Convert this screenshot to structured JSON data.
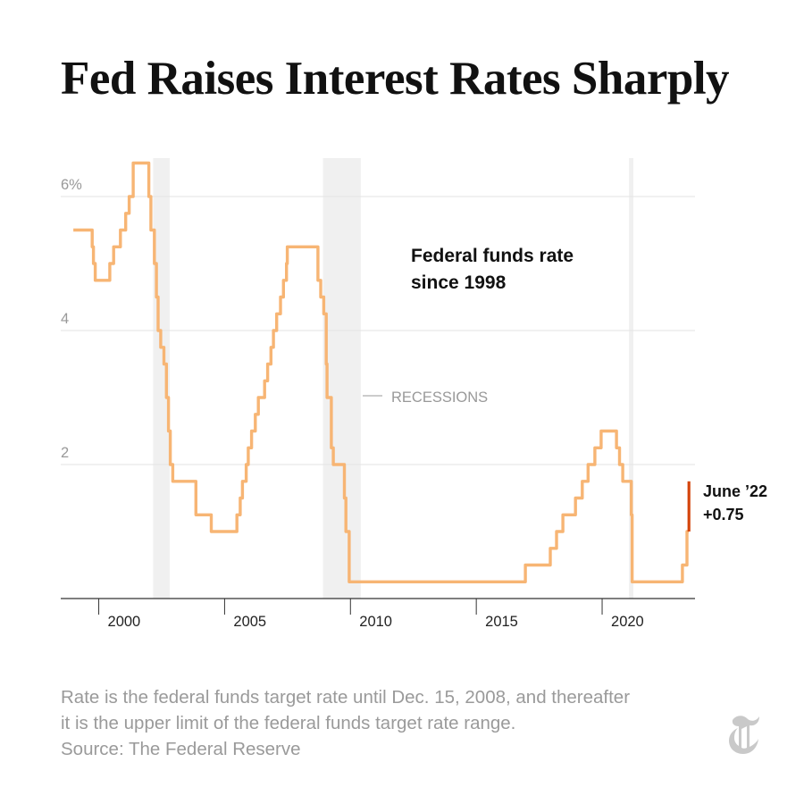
{
  "title": "Fed Raises Interest Rates Sharply",
  "colors": {
    "series": "#f7b574",
    "highlight": "#d4450c",
    "recession": "#f0f0f0",
    "grid": "#e3e3e3",
    "axis": "#333333",
    "muted": "#999999"
  },
  "chart_data": {
    "type": "line",
    "step": true,
    "subtitle_lines": [
      "Federal funds rate",
      "since 1998"
    ],
    "xlim": [
      1997.5,
      2022.7
    ],
    "ylim": [
      0,
      6.6
    ],
    "y_ticks": [
      {
        "value": 6,
        "label": "6%"
      },
      {
        "value": 4,
        "label": "4"
      },
      {
        "value": 2,
        "label": "2"
      }
    ],
    "x_ticks": [
      {
        "value": 2000,
        "label": "2000"
      },
      {
        "value": 2005,
        "label": "2005"
      },
      {
        "value": 2010,
        "label": "2010"
      },
      {
        "value": 2015,
        "label": "2015"
      },
      {
        "value": 2020,
        "label": "2020"
      }
    ],
    "recessions": [
      {
        "start": 2001.17,
        "end": 2001.83
      },
      {
        "start": 2007.92,
        "end": 2009.42
      },
      {
        "start": 2020.08,
        "end": 2020.25
      }
    ],
    "recession_label": "RECESSIONS",
    "series": [
      {
        "points": [
          [
            1998.0,
            5.5
          ],
          [
            1998.75,
            5.25
          ],
          [
            1998.8,
            5.0
          ],
          [
            1998.87,
            4.75
          ],
          [
            1999.45,
            5.0
          ],
          [
            1999.6,
            5.25
          ],
          [
            1999.87,
            5.5
          ],
          [
            2000.08,
            5.75
          ],
          [
            2000.22,
            6.0
          ],
          [
            2000.38,
            6.5
          ],
          [
            2001.0,
            6.0
          ],
          [
            2001.08,
            5.5
          ],
          [
            2001.22,
            5.0
          ],
          [
            2001.3,
            4.5
          ],
          [
            2001.37,
            4.0
          ],
          [
            2001.47,
            3.75
          ],
          [
            2001.6,
            3.5
          ],
          [
            2001.7,
            3.0
          ],
          [
            2001.78,
            2.5
          ],
          [
            2001.85,
            2.0
          ],
          [
            2001.95,
            1.75
          ],
          [
            2002.87,
            1.25
          ],
          [
            2003.48,
            1.0
          ],
          [
            2004.5,
            1.25
          ],
          [
            2004.63,
            1.5
          ],
          [
            2004.72,
            1.75
          ],
          [
            2004.87,
            2.0
          ],
          [
            2004.95,
            2.25
          ],
          [
            2005.08,
            2.5
          ],
          [
            2005.23,
            2.75
          ],
          [
            2005.35,
            3.0
          ],
          [
            2005.6,
            3.25
          ],
          [
            2005.72,
            3.5
          ],
          [
            2005.85,
            3.75
          ],
          [
            2005.95,
            4.0
          ],
          [
            2006.08,
            4.25
          ],
          [
            2006.23,
            4.5
          ],
          [
            2006.35,
            4.75
          ],
          [
            2006.47,
            5.0
          ],
          [
            2006.5,
            5.25
          ],
          [
            2007.72,
            4.75
          ],
          [
            2007.83,
            4.5
          ],
          [
            2007.95,
            4.25
          ],
          [
            2008.05,
            3.5
          ],
          [
            2008.08,
            3.0
          ],
          [
            2008.25,
            2.25
          ],
          [
            2008.33,
            2.0
          ],
          [
            2008.77,
            1.5
          ],
          [
            2008.83,
            1.0
          ],
          [
            2008.96,
            0.25
          ],
          [
            2015.96,
            0.5
          ],
          [
            2016.95,
            0.75
          ],
          [
            2017.2,
            1.0
          ],
          [
            2017.45,
            1.25
          ],
          [
            2017.95,
            1.5
          ],
          [
            2018.22,
            1.75
          ],
          [
            2018.45,
            2.0
          ],
          [
            2018.72,
            2.25
          ],
          [
            2018.97,
            2.5
          ],
          [
            2019.58,
            2.25
          ],
          [
            2019.7,
            2.0
          ],
          [
            2019.83,
            1.75
          ],
          [
            2020.17,
            1.25
          ],
          [
            2020.2,
            0.25
          ],
          [
            2022.2,
            0.5
          ],
          [
            2022.38,
            1.0
          ],
          [
            2022.45,
            1.0
          ]
        ]
      },
      {
        "name": "June ’22",
        "points": [
          [
            2022.46,
            1.0
          ],
          [
            2022.46,
            1.75
          ]
        ]
      }
    ],
    "annotations": [
      {
        "line1": "June ’22",
        "line2": "+0.75"
      }
    ]
  },
  "footnote": {
    "line1": "Rate is the federal funds target rate until Dec. 15, 2008, and thereafter",
    "line2": "it is the upper limit of the federal funds target rate range.",
    "line3": "Source: The Federal Reserve"
  },
  "logo_icon": "nyt-t-logo-icon"
}
